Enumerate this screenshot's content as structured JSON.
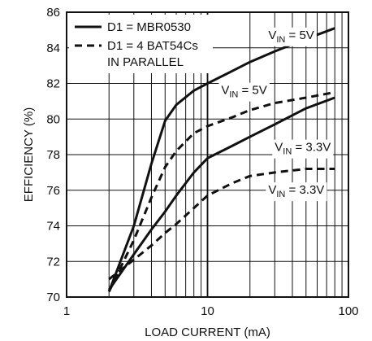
{
  "chart_data": {
    "type": "line",
    "xscale": "log",
    "xlim": [
      1,
      100
    ],
    "ylim": [
      70,
      86
    ],
    "xticks": [
      1,
      10,
      100
    ],
    "yticks": [
      70,
      72,
      74,
      76,
      78,
      80,
      82,
      84,
      86
    ],
    "xtick_labels": [
      "1",
      "10",
      "100"
    ],
    "ytick_labels": [
      "70",
      "72",
      "74",
      "76",
      "78",
      "80",
      "82",
      "84",
      "86"
    ],
    "xlabel": "LOAD CURRENT (mA)",
    "ylabel": "EFFICIENCY (%)",
    "grid": true,
    "legend_position": "top-left",
    "legend": [
      {
        "label": "D1 = MBR0530",
        "style": "solid"
      },
      {
        "label": "D1 = 4 BAT54Cs",
        "label2": "IN PARALLEL",
        "style": "dashed"
      }
    ],
    "series": [
      {
        "style": "solid",
        "annotation": {
          "main": "V",
          "sub": "IN",
          "rest": " = 5V"
        },
        "x": [
          2,
          3,
          4,
          5,
          6,
          8,
          10,
          15,
          20,
          30,
          50,
          80
        ],
        "y": [
          70.3,
          74.0,
          77.5,
          79.9,
          80.8,
          81.6,
          82.0,
          82.7,
          83.2,
          83.8,
          84.5,
          85.1
        ]
      },
      {
        "style": "dashed",
        "annotation": {
          "main": "V",
          "sub": "IN",
          "rest": " = 5V"
        },
        "x": [
          2,
          3,
          4,
          5,
          6,
          8,
          10,
          15,
          20,
          30,
          50,
          80
        ],
        "y": [
          70.3,
          73.2,
          75.6,
          77.3,
          78.2,
          79.2,
          79.6,
          80.1,
          80.5,
          80.9,
          81.2,
          81.5
        ]
      },
      {
        "style": "solid",
        "annotation": {
          "main": "V",
          "sub": "IN",
          "rest": " = 3.3V"
        },
        "x": [
          2,
          3,
          4,
          5,
          6,
          8,
          10,
          15,
          20,
          30,
          50,
          80
        ],
        "y": [
          70.4,
          72.4,
          73.8,
          74.8,
          75.7,
          77.0,
          77.8,
          78.5,
          79.0,
          79.7,
          80.6,
          81.2
        ]
      },
      {
        "style": "dashed",
        "annotation": {
          "main": "V",
          "sub": "IN",
          "rest": " = 3.3V"
        },
        "x": [
          2,
          3,
          4,
          5,
          6,
          8,
          10,
          15,
          20,
          30,
          50,
          80
        ],
        "y": [
          71.0,
          72.1,
          72.9,
          73.6,
          74.1,
          75.0,
          75.7,
          76.4,
          76.8,
          77.0,
          77.2,
          77.2
        ]
      }
    ]
  }
}
